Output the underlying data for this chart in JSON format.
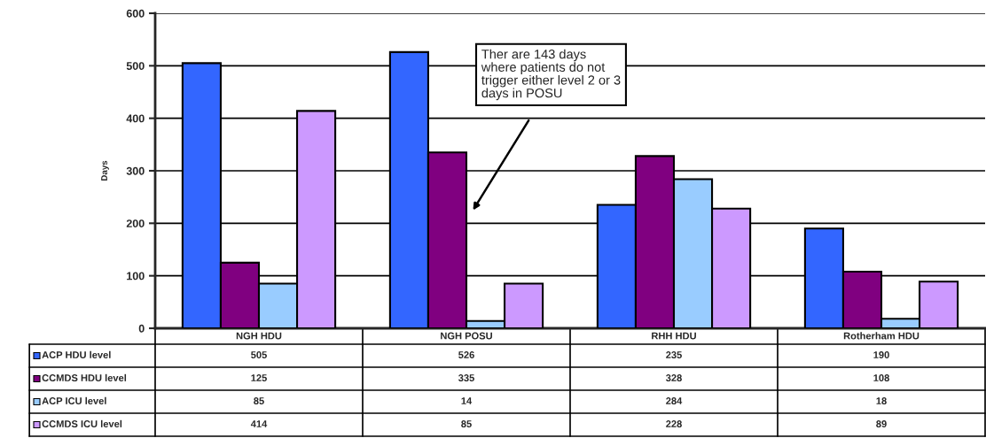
{
  "chart_data": {
    "type": "bar",
    "ylabel": "Days",
    "categories": [
      "NGH HDU",
      "NGH POSU",
      "RHH HDU",
      "Rotherham HDU"
    ],
    "series": [
      {
        "name": "ACP HDU level",
        "color": "#3366ff",
        "values": [
          505,
          526,
          235,
          190
        ]
      },
      {
        "name": "CCMDS HDU level",
        "color": "#800080",
        "values": [
          125,
          335,
          328,
          108
        ]
      },
      {
        "name": "ACP ICU level",
        "color": "#99ccff",
        "values": [
          85,
          14,
          284,
          18
        ]
      },
      {
        "name": "CCMDS ICU level",
        "color": "#cc99ff",
        "values": [
          414,
          85,
          228,
          89
        ]
      }
    ],
    "ylim": [
      0,
      600
    ],
    "yticks": [
      0,
      100,
      200,
      300,
      400,
      500,
      600
    ],
    "grid": "y",
    "legend": "bottom",
    "data_labels": true,
    "annotations": [
      "Ther are 143 days\nwhere patients do not\ntrigger either level 2 or 3\ndays in POSU"
    ]
  }
}
